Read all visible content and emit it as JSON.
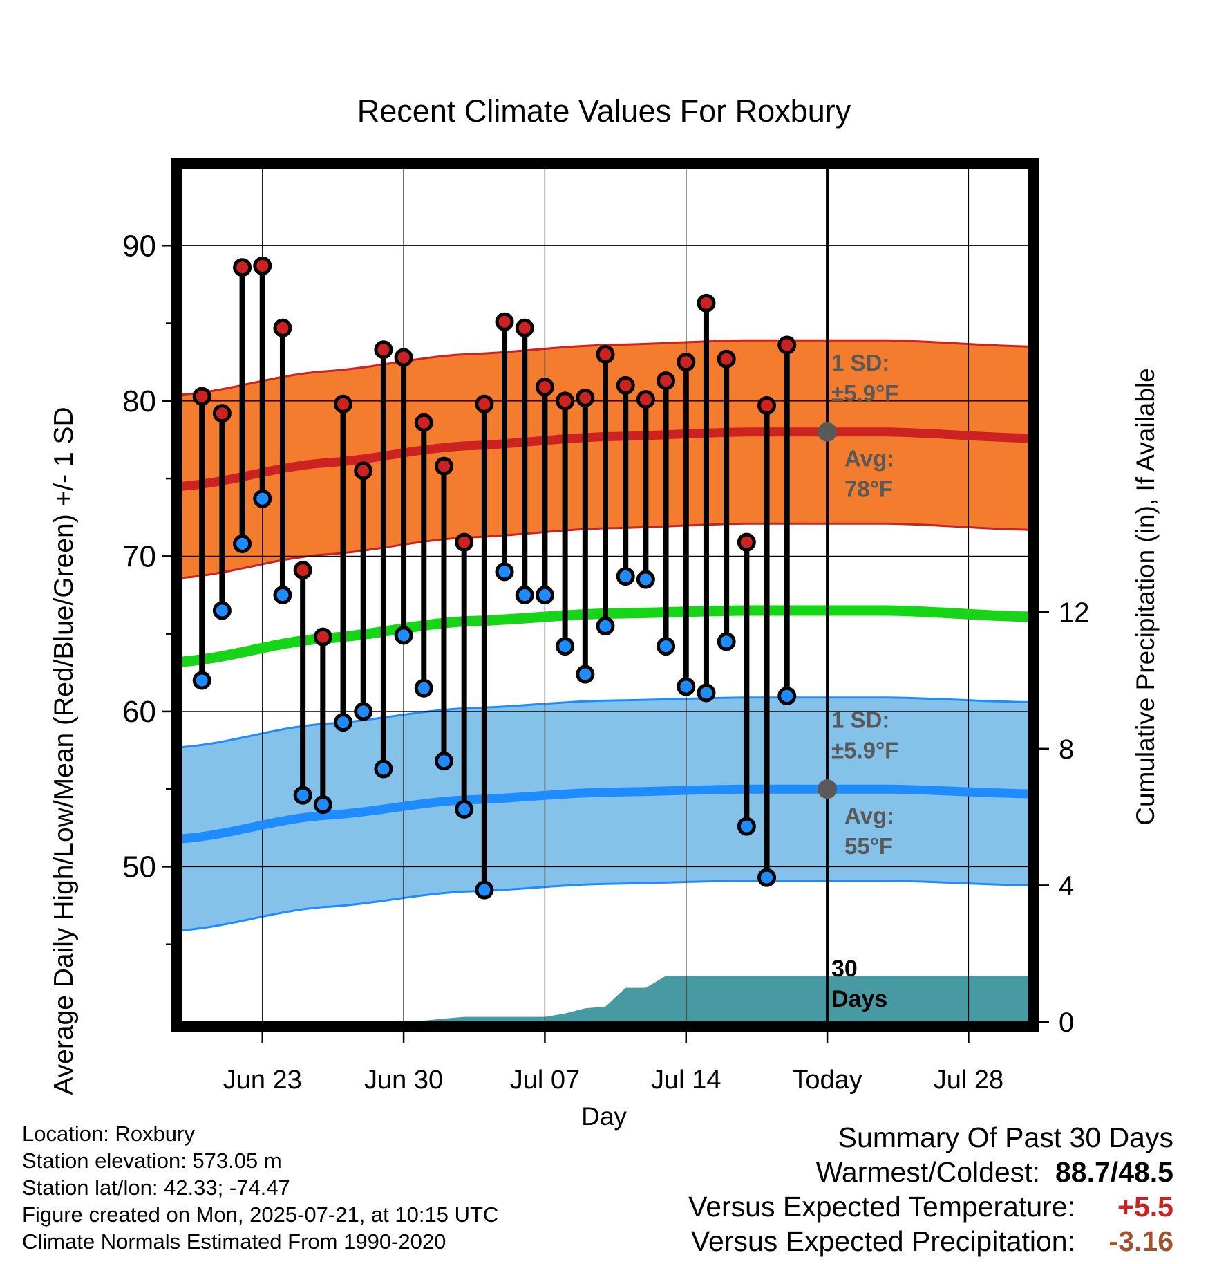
{
  "chart_data": {
    "type": "line",
    "title": "Recent Climate Values For Roxbury",
    "xlabel": "Day",
    "ylabel": "Average Daily High/Low/Mean (Red/Blue/Green) +/- 1 SD",
    "y2label": "Cumulative Precipitation (in), If Available",
    "ylim": [
      40,
      95
    ],
    "y2lim": [
      0,
      25
    ],
    "x_range": [
      "2025-06-19",
      "2025-07-31"
    ],
    "y_ticks": [
      "50",
      "60",
      "70",
      "80",
      "90"
    ],
    "y2_ticks": [
      "0",
      "4",
      "8",
      "12"
    ],
    "x_ticks": [
      {
        "date": "2025-06-23",
        "label": "Jun 23"
      },
      {
        "date": "2025-06-30",
        "label": "Jun 30"
      },
      {
        "date": "2025-07-07",
        "label": "Jul 07"
      },
      {
        "date": "2025-07-14",
        "label": "Jul 14"
      },
      {
        "date": "2025-07-21",
        "label": "Today"
      },
      {
        "date": "2025-07-28",
        "label": "Jul 28"
      }
    ],
    "today": "2025-07-21",
    "grid": true,
    "colors": {
      "high": "#cc2222",
      "high_band": "#f47c2e",
      "low": "#1e8cff",
      "low_band": "#84c2ea",
      "mean": "#16d416",
      "precip": "#479aa2",
      "annotation": "#595959"
    },
    "daily_dates": [
      "2025-06-20",
      "2025-06-21",
      "2025-06-22",
      "2025-06-23",
      "2025-06-24",
      "2025-06-25",
      "2025-06-26",
      "2025-06-27",
      "2025-06-28",
      "2025-06-29",
      "2025-06-30",
      "2025-07-01",
      "2025-07-02",
      "2025-07-03",
      "2025-07-04",
      "2025-07-05",
      "2025-07-06",
      "2025-07-07",
      "2025-07-08",
      "2025-07-09",
      "2025-07-10",
      "2025-07-11",
      "2025-07-12",
      "2025-07-13",
      "2025-07-14",
      "2025-07-15",
      "2025-07-16",
      "2025-07-17",
      "2025-07-18",
      "2025-07-19",
      "2025-07-20"
    ],
    "daily_high": [
      80.3,
      79.2,
      88.6,
      88.7,
      84.7,
      69.1,
      64.8,
      79.8,
      75.5,
      83.3,
      82.8,
      78.6,
      75.8,
      70.9,
      79.8,
      85.1,
      84.7,
      80.9,
      80.0,
      80.2,
      83.0,
      81.0,
      80.1,
      81.3,
      82.5,
      86.3,
      82.7,
      70.9,
      79.7,
      83.6,
      null
    ],
    "daily_low": [
      62.0,
      66.5,
      70.8,
      73.7,
      67.5,
      54.6,
      54.0,
      59.3,
      60.0,
      56.3,
      64.9,
      61.5,
      56.8,
      53.7,
      48.5,
      69.0,
      67.5,
      67.5,
      64.2,
      62.4,
      65.5,
      68.7,
      68.5,
      64.2,
      61.6,
      61.2,
      64.5,
      52.6,
      49.3,
      61.0,
      null
    ],
    "normal_dates": [
      "2025-06-19",
      "2025-06-26",
      "2025-07-03",
      "2025-07-10",
      "2025-07-17",
      "2025-07-24",
      "2025-07-31"
    ],
    "normal_high": [
      74.5,
      76.0,
      77.1,
      77.7,
      78.0,
      78.0,
      77.6
    ],
    "normal_low": [
      51.8,
      53.3,
      54.3,
      54.8,
      55.0,
      55.0,
      54.7
    ],
    "normal_mean": [
      63.2,
      64.7,
      65.8,
      66.3,
      66.5,
      66.5,
      66.1
    ],
    "sd": 5.9,
    "precip_dates": [
      "2025-06-19",
      "2025-06-29",
      "2025-06-30",
      "2025-07-01",
      "2025-07-02",
      "2025-07-03",
      "2025-07-07",
      "2025-07-08",
      "2025-07-09",
      "2025-07-10",
      "2025-07-11",
      "2025-07-12",
      "2025-07-13",
      "2025-07-14",
      "2025-07-31"
    ],
    "precip_cum": [
      0.0,
      0.0,
      0.02,
      0.04,
      0.1,
      0.15,
      0.15,
      0.25,
      0.4,
      0.45,
      1.0,
      1.0,
      1.35,
      1.35,
      1.35
    ],
    "annotations": {
      "high_sd_line1": "1 SD:",
      "high_sd_line2": "±5.9°F",
      "high_avg_line1": "Avg:",
      "high_avg_line2": "78°F",
      "low_sd_line1": "1 SD:",
      "low_sd_line2": "±5.9°F",
      "low_avg_line1": "Avg:",
      "low_avg_line2": "55°F",
      "days_line1": "30",
      "days_line2": "Days"
    }
  },
  "footer": {
    "location": "Location: Roxbury",
    "elevation": "Station elevation: 573.05 m",
    "latlon": "Station lat/lon: 42.33; -74.47",
    "created": "Figure created on Mon, 2025-07-21, at 10:15 UTC",
    "normals": "Climate Normals Estimated From 1990-2020"
  },
  "summary": {
    "title": "Summary Of Past 30 Days",
    "warm_cold_label": "Warmest/Coldest:",
    "warm_cold_value": "88.7/48.5",
    "temp_label": "Versus Expected Temperature:",
    "temp_value": "+5.5",
    "temp_color": "#cc2222",
    "precip_label": "Versus Expected Precipitation:",
    "precip_value": "-3.16",
    "precip_color": "#a0522d"
  }
}
